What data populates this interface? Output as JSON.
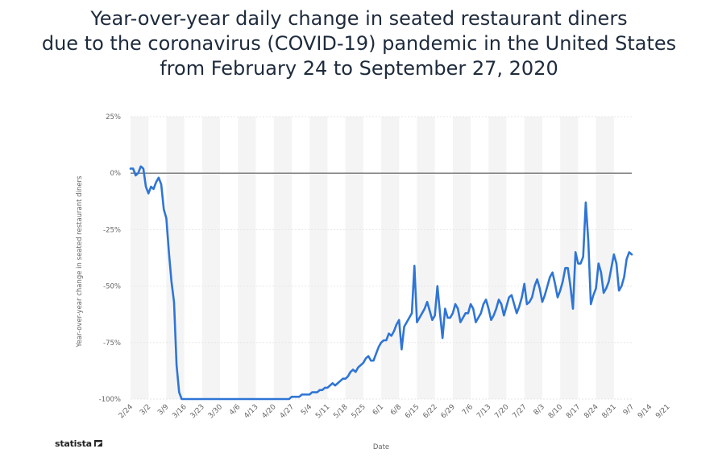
{
  "chart_data": {
    "type": "line",
    "title_lines": [
      "Year-over-year daily change in seated restaurant diners",
      "due to the coronavirus (COVID-19) pandemic  in the United States",
      "from February 24 to September 27, 2020"
    ],
    "xlabel": "Date",
    "ylabel": "Year-over-year change in seated restaurant diners",
    "ylim": [
      -100,
      25
    ],
    "y_ticks": [
      25,
      0,
      -25,
      -50,
      -75,
      -100
    ],
    "y_tick_labels": [
      "25%",
      "0%",
      "-25%",
      "-50%",
      "-75%",
      "-100%"
    ],
    "x_tick_labels": [
      "2/24",
      "3/2",
      "3/9",
      "3/16",
      "3/23",
      "3/30",
      "4/6",
      "4/13",
      "4/20",
      "4/27",
      "5/4",
      "5/11",
      "5/18",
      "5/25",
      "6/1",
      "6/8",
      "6/15",
      "6/22",
      "6/29",
      "7/6",
      "7/13",
      "7/20",
      "7/27",
      "8/3",
      "8/10",
      "8/17",
      "8/24",
      "8/31",
      "9/7",
      "9/14",
      "9/21"
    ],
    "grid": true,
    "legend": "none",
    "colors": {
      "line": "#2f75d6",
      "zero_line": "#555555",
      "grid_band": "#f4f4f4"
    },
    "series": [
      {
        "values": [
          2,
          2,
          -1,
          0,
          3,
          2,
          -6,
          -9,
          -6,
          -7,
          -4,
          -2,
          -5,
          -16,
          -20,
          -35,
          -48,
          -57,
          -85,
          -97,
          -100,
          -100,
          -100,
          -100,
          -100,
          -100,
          -100,
          -100,
          -100,
          -100,
          -100,
          -100,
          -100,
          -100,
          -100,
          -100,
          -100,
          -100,
          -100,
          -100,
          -100,
          -100,
          -100,
          -100,
          -100,
          -100,
          -100,
          -100,
          -100,
          -100,
          -100,
          -100,
          -100,
          -100,
          -100,
          -100,
          -100,
          -100,
          -100,
          -100,
          -100,
          -100,
          -100,
          -99,
          -99,
          -99,
          -99,
          -98,
          -98,
          -98,
          -98,
          -97,
          -97,
          -97,
          -96,
          -96,
          -95,
          -95,
          -94,
          -93,
          -94,
          -93,
          -92,
          -91,
          -91,
          -90,
          -88,
          -87,
          -88,
          -86,
          -85,
          -84,
          -82,
          -81,
          -83,
          -83,
          -80,
          -77,
          -75,
          -74,
          -74,
          -71,
          -72,
          -70,
          -67,
          -65,
          -78,
          -68,
          -66,
          -64,
          -62,
          -41,
          -66,
          -64,
          -62,
          -60,
          -57,
          -61,
          -65,
          -63,
          -50,
          -62,
          -73,
          -60,
          -64,
          -64,
          -62,
          -58,
          -60,
          -66,
          -64,
          -62,
          -62,
          -58,
          -60,
          -66,
          -64,
          -62,
          -58,
          -56,
          -60,
          -65,
          -63,
          -60,
          -56,
          -58,
          -63,
          -59,
          -55,
          -54,
          -58,
          -62,
          -59,
          -55,
          -49,
          -58,
          -57,
          -55,
          -50,
          -47,
          -51,
          -57,
          -54,
          -50,
          -46,
          -44,
          -49,
          -55,
          -52,
          -48,
          -42,
          -42,
          -50,
          -60,
          -35,
          -40,
          -40,
          -37,
          -13,
          -30,
          -58,
          -54,
          -51,
          -40,
          -44,
          -53,
          -51,
          -48,
          -42,
          -36,
          -40,
          -52,
          -50,
          -46,
          -38,
          -35,
          -36
        ]
      }
    ]
  },
  "brand": {
    "name": "statista"
  }
}
